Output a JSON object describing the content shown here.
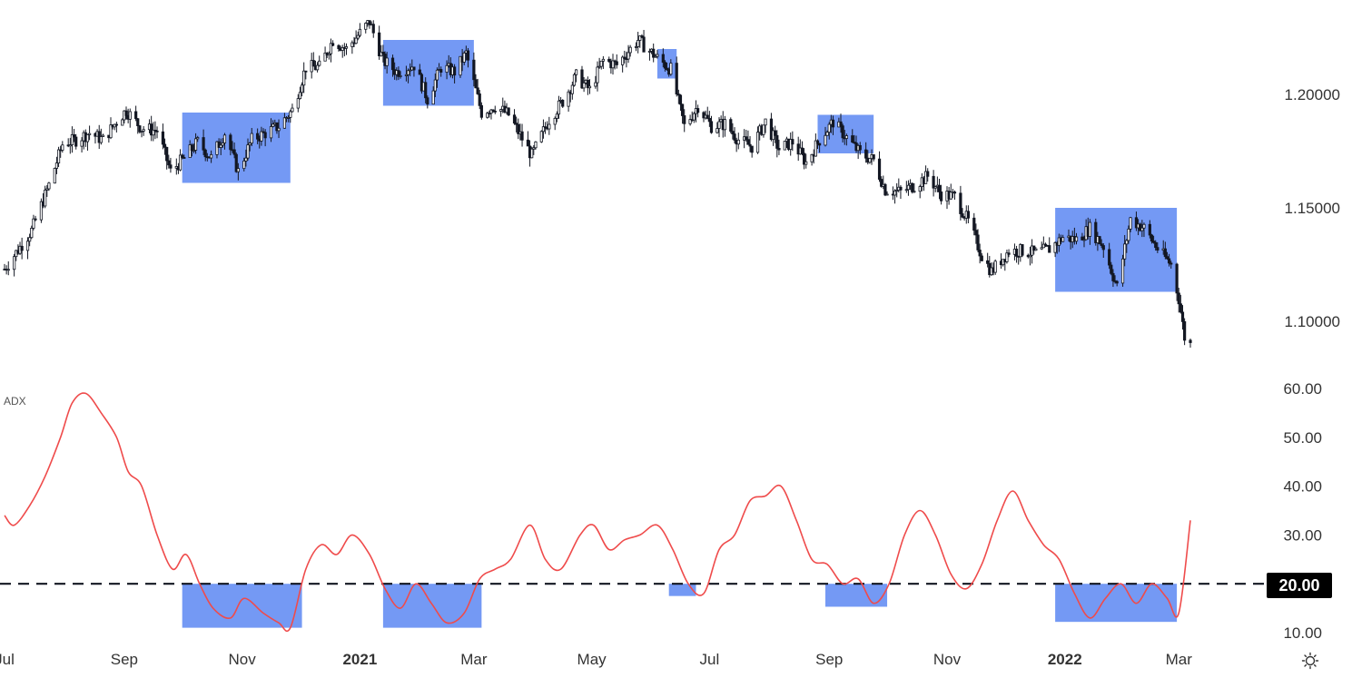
{
  "colors": {
    "highlight": "#6d93f3",
    "candle": "#131722",
    "adx_line": "#ef4b4b",
    "threshold_line": "#131722",
    "badge_bg": "#000000",
    "badge_text": "#ffffff",
    "axis_text": "#333333"
  },
  "icons": {
    "settings": "sun-gear-icon"
  },
  "chart_data": [
    {
      "type": "candlestick",
      "title": "",
      "price_axis": {
        "ticks": [
          {
            "value": 1.2,
            "label": "1.20000"
          },
          {
            "value": 1.15,
            "label": "1.15000"
          },
          {
            "value": 1.1,
            "label": "1.10000"
          }
        ]
      },
      "x_axis": {
        "start": "2020-07-01",
        "end": "2022-03-07",
        "ticks": [
          {
            "date": "2020-07-01",
            "label": "Jul",
            "bold": false
          },
          {
            "date": "2020-09-01",
            "label": "Sep",
            "bold": false
          },
          {
            "date": "2020-11-01",
            "label": "Nov",
            "bold": false
          },
          {
            "date": "2021-01-01",
            "label": "2021",
            "bold": true
          },
          {
            "date": "2021-03-01",
            "label": "Mar",
            "bold": false
          },
          {
            "date": "2021-05-01",
            "label": "May",
            "bold": false
          },
          {
            "date": "2021-07-01",
            "label": "Jul",
            "bold": false
          },
          {
            "date": "2021-09-01",
            "label": "Sep",
            "bold": false
          },
          {
            "date": "2021-11-01",
            "label": "Nov",
            "bold": false
          },
          {
            "date": "2022-01-01",
            "label": "2022",
            "bold": true
          },
          {
            "date": "2022-03-01",
            "label": "Mar",
            "bold": false
          }
        ]
      },
      "price_path": [
        [
          "2020-07-01",
          1.123
        ],
        [
          "2020-07-15",
          1.14
        ],
        [
          "2020-07-24",
          1.16
        ],
        [
          "2020-07-31",
          1.178
        ],
        [
          "2020-08-07",
          1.18
        ],
        [
          "2020-08-14",
          1.183
        ],
        [
          "2020-08-21",
          1.18
        ],
        [
          "2020-08-28",
          1.188
        ],
        [
          "2020-09-02",
          1.193
        ],
        [
          "2020-09-10",
          1.185
        ],
        [
          "2020-09-18",
          1.184
        ],
        [
          "2020-09-25",
          1.166
        ],
        [
          "2020-10-02",
          1.172
        ],
        [
          "2020-10-09",
          1.179
        ],
        [
          "2020-10-16",
          1.172
        ],
        [
          "2020-10-23",
          1.183
        ],
        [
          "2020-10-30",
          1.166
        ],
        [
          "2020-11-06",
          1.18
        ],
        [
          "2020-11-13",
          1.183
        ],
        [
          "2020-11-20",
          1.186
        ],
        [
          "2020-11-27",
          1.193
        ],
        [
          "2020-12-04",
          1.212
        ],
        [
          "2020-12-11",
          1.212
        ],
        [
          "2020-12-18",
          1.224
        ],
        [
          "2020-12-25",
          1.22
        ],
        [
          "2021-01-06",
          1.232
        ],
        [
          "2021-01-13",
          1.215
        ],
        [
          "2021-01-20",
          1.21
        ],
        [
          "2021-01-29",
          1.213
        ],
        [
          "2021-02-05",
          1.198
        ],
        [
          "2021-02-12",
          1.212
        ],
        [
          "2021-02-19",
          1.21
        ],
        [
          "2021-02-25",
          1.218
        ],
        [
          "2021-03-05",
          1.192
        ],
        [
          "2021-03-12",
          1.195
        ],
        [
          "2021-03-19",
          1.191
        ],
        [
          "2021-03-31",
          1.173
        ],
        [
          "2021-04-09",
          1.189
        ],
        [
          "2021-04-16",
          1.197
        ],
        [
          "2021-04-23",
          1.208
        ],
        [
          "2021-04-30",
          1.202
        ],
        [
          "2021-05-07",
          1.215
        ],
        [
          "2021-05-14",
          1.213
        ],
        [
          "2021-05-25",
          1.224
        ],
        [
          "2021-06-04",
          1.216
        ],
        [
          "2021-06-11",
          1.211
        ],
        [
          "2021-06-18",
          1.186
        ],
        [
          "2021-06-25",
          1.195
        ],
        [
          "2021-07-02",
          1.186
        ],
        [
          "2021-07-09",
          1.187
        ],
        [
          "2021-07-16",
          1.18
        ],
        [
          "2021-07-23",
          1.177
        ],
        [
          "2021-07-30",
          1.188
        ],
        [
          "2021-08-06",
          1.176
        ],
        [
          "2021-08-13",
          1.179
        ],
        [
          "2021-08-20",
          1.17
        ],
        [
          "2021-08-27",
          1.18
        ],
        [
          "2021-09-03",
          1.188
        ],
        [
          "2021-09-10",
          1.181
        ],
        [
          "2021-09-17",
          1.174
        ],
        [
          "2021-09-24",
          1.171
        ],
        [
          "2021-09-30",
          1.158
        ],
        [
          "2021-10-08",
          1.157
        ],
        [
          "2021-10-15",
          1.16
        ],
        [
          "2021-10-22",
          1.164
        ],
        [
          "2021-10-29",
          1.156
        ],
        [
          "2021-11-05",
          1.155
        ],
        [
          "2021-11-12",
          1.144
        ],
        [
          "2021-11-19",
          1.129
        ],
        [
          "2021-11-24",
          1.122
        ],
        [
          "2021-12-03",
          1.131
        ],
        [
          "2021-12-10",
          1.131
        ],
        [
          "2021-12-17",
          1.13
        ],
        [
          "2021-12-24",
          1.132
        ],
        [
          "2021-12-31",
          1.137
        ],
        [
          "2022-01-07",
          1.136
        ],
        [
          "2022-01-14",
          1.141
        ],
        [
          "2022-01-21",
          1.133
        ],
        [
          "2022-01-28",
          1.115
        ],
        [
          "2022-02-04",
          1.145
        ],
        [
          "2022-02-11",
          1.141
        ],
        [
          "2022-02-18",
          1.132
        ],
        [
          "2022-02-25",
          1.125
        ],
        [
          "2022-03-01",
          1.11
        ],
        [
          "2022-03-04",
          1.093
        ],
        [
          "2022-03-07",
          1.09
        ]
      ]
    },
    {
      "type": "line",
      "indicator_label": "ADX",
      "y_axis": {
        "ticks": [
          {
            "value": 60,
            "label": "60.00"
          },
          {
            "value": 50,
            "label": "50.00"
          },
          {
            "value": 40,
            "label": "40.00"
          },
          {
            "value": 30,
            "label": "30.00"
          },
          {
            "value": 10,
            "label": "10.00"
          }
        ]
      },
      "threshold": {
        "value": 20,
        "label": "20.00"
      },
      "series": [
        {
          "values": [
            [
              "2020-07-01",
              34
            ],
            [
              "2020-07-06",
              32
            ],
            [
              "2020-07-14",
              36
            ],
            [
              "2020-07-22",
              42
            ],
            [
              "2020-07-30",
              50
            ],
            [
              "2020-08-05",
              57
            ],
            [
              "2020-08-12",
              59
            ],
            [
              "2020-08-20",
              55
            ],
            [
              "2020-08-28",
              50
            ],
            [
              "2020-09-03",
              43
            ],
            [
              "2020-09-10",
              40
            ],
            [
              "2020-09-18",
              30
            ],
            [
              "2020-09-26",
              23
            ],
            [
              "2020-10-03",
              26
            ],
            [
              "2020-10-10",
              20
            ],
            [
              "2020-10-17",
              15
            ],
            [
              "2020-10-26",
              13
            ],
            [
              "2020-11-02",
              17
            ],
            [
              "2020-11-12",
              14
            ],
            [
              "2020-11-20",
              12
            ],
            [
              "2020-11-26",
              11
            ],
            [
              "2020-12-04",
              23
            ],
            [
              "2020-12-12",
              28
            ],
            [
              "2020-12-20",
              26
            ],
            [
              "2020-12-28",
              30
            ],
            [
              "2021-01-06",
              26
            ],
            [
              "2021-01-14",
              19
            ],
            [
              "2021-01-22",
              15
            ],
            [
              "2021-01-30",
              20
            ],
            [
              "2021-02-07",
              16
            ],
            [
              "2021-02-15",
              12
            ],
            [
              "2021-02-24",
              14
            ],
            [
              "2021-03-04",
              21
            ],
            [
              "2021-03-12",
              23
            ],
            [
              "2021-03-20",
              25
            ],
            [
              "2021-03-30",
              32
            ],
            [
              "2021-04-07",
              25
            ],
            [
              "2021-04-15",
              23
            ],
            [
              "2021-04-25",
              30
            ],
            [
              "2021-05-02",
              32
            ],
            [
              "2021-05-10",
              27
            ],
            [
              "2021-05-18",
              29
            ],
            [
              "2021-05-26",
              30
            ],
            [
              "2021-06-04",
              32
            ],
            [
              "2021-06-12",
              27
            ],
            [
              "2021-06-20",
              20
            ],
            [
              "2021-06-28",
              18
            ],
            [
              "2021-07-06",
              27
            ],
            [
              "2021-07-14",
              30
            ],
            [
              "2021-07-22",
              37
            ],
            [
              "2021-07-30",
              38
            ],
            [
              "2021-08-07",
              40
            ],
            [
              "2021-08-15",
              33
            ],
            [
              "2021-08-23",
              25
            ],
            [
              "2021-08-31",
              24
            ],
            [
              "2021-09-08",
              20
            ],
            [
              "2021-09-16",
              21
            ],
            [
              "2021-09-24",
              16
            ],
            [
              "2021-10-02",
              20
            ],
            [
              "2021-10-10",
              30
            ],
            [
              "2021-10-18",
              35
            ],
            [
              "2021-10-26",
              30
            ],
            [
              "2021-11-03",
              22
            ],
            [
              "2021-11-11",
              19
            ],
            [
              "2021-11-19",
              24
            ],
            [
              "2021-11-27",
              33
            ],
            [
              "2021-12-05",
              39
            ],
            [
              "2021-12-13",
              33
            ],
            [
              "2021-12-21",
              28
            ],
            [
              "2021-12-29",
              25
            ],
            [
              "2022-01-06",
              18
            ],
            [
              "2022-01-14",
              13
            ],
            [
              "2022-01-22",
              17
            ],
            [
              "2022-01-30",
              20
            ],
            [
              "2022-02-07",
              16
            ],
            [
              "2022-02-15",
              20
            ],
            [
              "2022-02-23",
              17
            ],
            [
              "2022-03-01",
              14
            ],
            [
              "2022-03-07",
              33
            ]
          ]
        }
      ]
    }
  ],
  "price_highlights": [
    {
      "from": "2020-10-01",
      "to": "2020-11-26",
      "y_top": 1.192,
      "y_bottom": 1.161
    },
    {
      "from": "2021-01-13",
      "to": "2021-03-01",
      "y_top": 1.224,
      "y_bottom": 1.195
    },
    {
      "from": "2021-06-04",
      "to": "2021-06-14",
      "y_top": 1.22,
      "y_bottom": 1.207
    },
    {
      "from": "2021-08-26",
      "to": "2021-09-24",
      "y_top": 1.191,
      "y_bottom": 1.174
    },
    {
      "from": "2021-12-27",
      "to": "2022-02-28",
      "y_top": 1.15,
      "y_bottom": 1.113
    }
  ],
  "adx_highlights": [
    {
      "from": "2020-10-01",
      "to": "2020-12-02",
      "y_top": 20,
      "y_bottom": 11
    },
    {
      "from": "2021-01-13",
      "to": "2021-03-05",
      "y_top": 20,
      "y_bottom": 11
    },
    {
      "from": "2021-06-10",
      "to": "2021-06-24",
      "y_top": 20,
      "y_bottom": 17.5
    },
    {
      "from": "2021-08-30",
      "to": "2021-10-01",
      "y_top": 20,
      "y_bottom": 15.3
    },
    {
      "from": "2021-12-27",
      "to": "2022-02-28",
      "y_top": 20,
      "y_bottom": 12.2
    }
  ]
}
